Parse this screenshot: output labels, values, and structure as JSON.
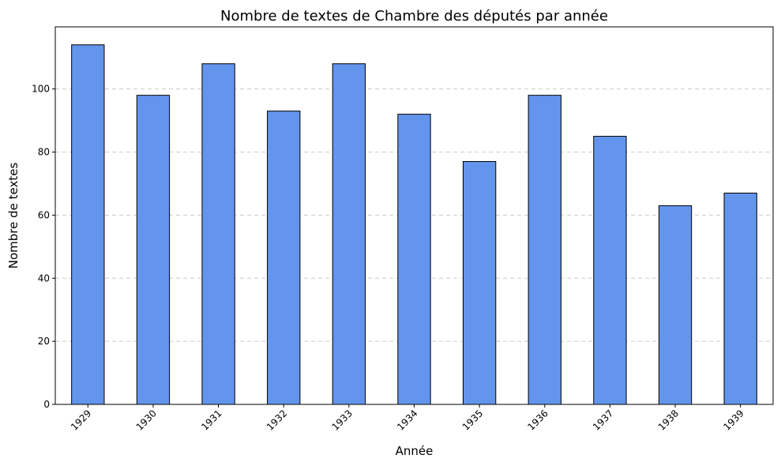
{
  "chart_data": {
    "type": "bar",
    "title": "Nombre de textes de Chambre des députés par année",
    "xlabel": "Année",
    "ylabel": "Nombre de textes",
    "categories": [
      "1929",
      "1930",
      "1931",
      "1932",
      "1933",
      "1934",
      "1935",
      "1936",
      "1937",
      "1938",
      "1939"
    ],
    "values": [
      114,
      98,
      108,
      93,
      108,
      92,
      77,
      98,
      85,
      63,
      67
    ],
    "ylim": [
      0,
      119.7
    ],
    "yticks": [
      0,
      20,
      40,
      60,
      80,
      100
    ],
    "grid": "y-dashed",
    "bar_color": "#6495ed",
    "edge_color": "#000000"
  }
}
